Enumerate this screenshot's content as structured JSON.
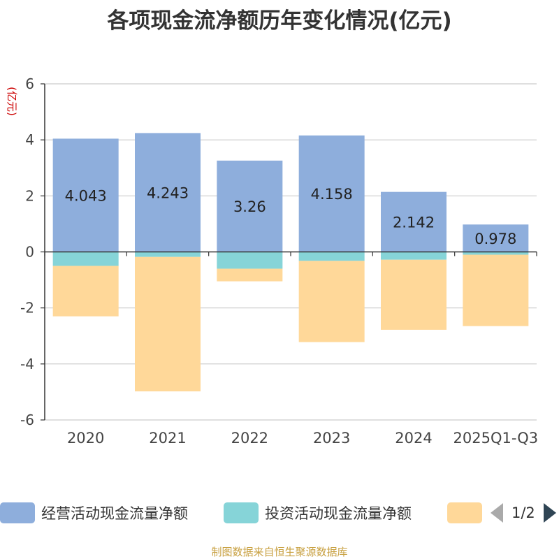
{
  "chart_data": {
    "type": "bar",
    "stacked": true,
    "title": "各项现金流净额历年变化情况(亿元)",
    "ylabel": "(亿元)",
    "ylim": [
      -6,
      6
    ],
    "yticks": [
      6,
      4,
      2,
      0,
      -2,
      -4,
      -6
    ],
    "categories": [
      "2020",
      "2021",
      "2022",
      "2023",
      "2024",
      "2025Q1-Q3"
    ],
    "series": [
      {
        "name": "经营活动现金流量净额",
        "color": "#8eaedc",
        "values": [
          4.043,
          4.243,
          3.26,
          4.158,
          2.142,
          0.978
        ],
        "labels": [
          "4.043",
          "4.243",
          "3.26",
          "4.158",
          "2.142",
          "0.978"
        ]
      },
      {
        "name": "投资活动现金流量净额",
        "color": "#86d4d8",
        "values": [
          -0.5,
          -0.18,
          -0.6,
          -0.32,
          -0.28,
          -0.1
        ]
      },
      {
        "name": "",
        "color": "#ffd899",
        "values": [
          -1.8,
          -4.8,
          -0.45,
          -2.9,
          -2.5,
          -2.55
        ]
      }
    ],
    "grid": true,
    "legend_position": "bottom"
  },
  "legend": {
    "page": "1/2"
  },
  "source": "制图数据来自恒生聚源数据库"
}
